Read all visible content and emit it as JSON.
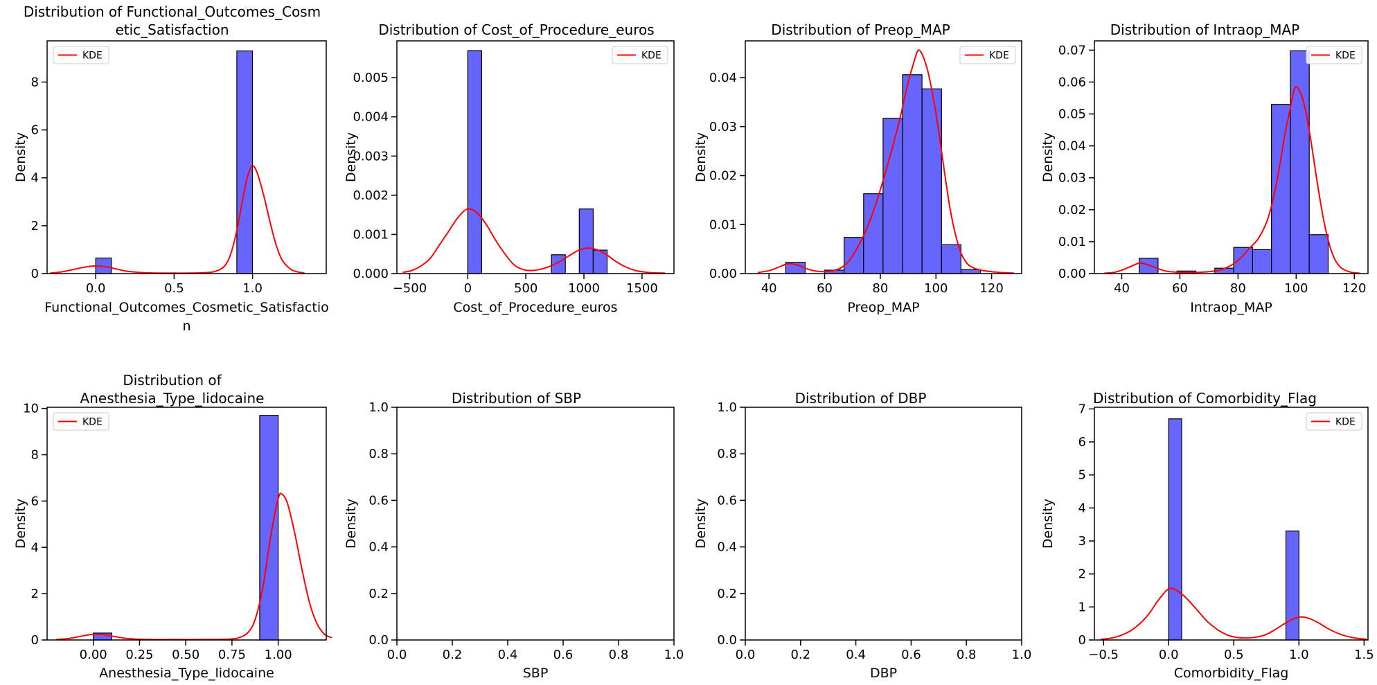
{
  "figure": {
    "background": "#ffffff",
    "bar_fill": "#6666ff",
    "bar_edge": "#000000",
    "kde_color": "#ff0000",
    "axis_color": "#000000",
    "legend_border": "#cccccc"
  },
  "chart_data": [
    {
      "type": "bar",
      "title_lines": [
        "Distribution of Functional_Outcomes_Cosm",
        "etic_Satisfaction"
      ],
      "xlabel_lines": [
        "Functional_Outcomes_Cosmetic_Satisfactio",
        "n"
      ],
      "ylabel": "Density",
      "xlim": [
        -0.31,
        1.47
      ],
      "ylim": [
        0,
        9.72
      ],
      "xticks": {
        "values": [
          0.0,
          0.5,
          1.0
        ],
        "labels": [
          "0.0",
          "0.5",
          "1.0"
        ]
      },
      "yticks": {
        "values": [
          0,
          2,
          4,
          6,
          8
        ],
        "labels": [
          "0",
          "2",
          "4",
          "6",
          "8"
        ]
      },
      "bars": [
        [
          0,
          0.1,
          0.65
        ],
        [
          0.9,
          1.0,
          9.3
        ]
      ],
      "kde": [
        [
          -0.29,
          0.02
        ],
        [
          -0.22,
          0.07
        ],
        [
          -0.15,
          0.16
        ],
        [
          -0.07,
          0.27
        ],
        [
          0,
          0.32
        ],
        [
          0.07,
          0.28
        ],
        [
          0.14,
          0.18
        ],
        [
          0.21,
          0.09
        ],
        [
          0.3,
          0.04
        ],
        [
          0.4,
          0.02
        ],
        [
          0.5,
          0.02
        ],
        [
          0.6,
          0.02
        ],
        [
          0.7,
          0.04
        ],
        [
          0.76,
          0.09
        ],
        [
          0.82,
          0.3
        ],
        [
          0.86,
          0.8
        ],
        [
          0.9,
          1.8
        ],
        [
          0.94,
          3.2
        ],
        [
          0.97,
          4.1
        ],
        [
          1.0,
          4.5
        ],
        [
          1.03,
          4.2
        ],
        [
          1.07,
          3.3
        ],
        [
          1.11,
          2.2
        ],
        [
          1.15,
          1.2
        ],
        [
          1.19,
          0.55
        ],
        [
          1.24,
          0.2
        ],
        [
          1.28,
          0.08
        ],
        [
          1.33,
          0.03
        ]
      ],
      "legend": {
        "show": true,
        "loc": "upper-left",
        "label": "KDE"
      }
    },
    {
      "type": "bar",
      "title_lines": [
        "Distribution of Cost_of_Procedure_euros"
      ],
      "xlabel_lines": [
        "Cost_of_Procedure_euros"
      ],
      "ylabel": "Density",
      "xlim": [
        -610,
        1775
      ],
      "ylim": [
        0,
        0.00594
      ],
      "xticks": {
        "values": [
          -500,
          0,
          500,
          1000,
          1500
        ],
        "labels": [
          "−500",
          "0",
          "500",
          "1000",
          "1500"
        ]
      },
      "yticks": {
        "values": [
          0,
          0.001,
          0.002,
          0.003,
          0.004,
          0.005
        ],
        "labels": [
          "0.000",
          "0.001",
          "0.002",
          "0.003",
          "0.004",
          "0.005"
        ]
      },
      "bars": [
        [
          0,
          120,
          0.00569
        ],
        [
          720,
          840,
          0.00048
        ],
        [
          960,
          1080,
          0.00165
        ],
        [
          1080,
          1200,
          0.0006
        ]
      ],
      "kde": [
        [
          -560,
          3e-05
        ],
        [
          -480,
          8e-05
        ],
        [
          -400,
          0.0002
        ],
        [
          -320,
          0.0004
        ],
        [
          -240,
          0.00075
        ],
        [
          -160,
          0.0011
        ],
        [
          -80,
          0.00145
        ],
        [
          0,
          0.00165
        ],
        [
          80,
          0.00155
        ],
        [
          160,
          0.00125
        ],
        [
          240,
          0.00085
        ],
        [
          320,
          0.0005
        ],
        [
          400,
          0.00022
        ],
        [
          480,
          0.0001
        ],
        [
          560,
          8e-05
        ],
        [
          640,
          0.00012
        ],
        [
          720,
          0.0002
        ],
        [
          800,
          0.00032
        ],
        [
          880,
          0.00047
        ],
        [
          960,
          0.0006
        ],
        [
          1040,
          0.00065
        ],
        [
          1120,
          0.0006
        ],
        [
          1200,
          0.00047
        ],
        [
          1280,
          0.0003
        ],
        [
          1360,
          0.00017
        ],
        [
          1440,
          8e-05
        ],
        [
          1520,
          4e-05
        ],
        [
          1600,
          2e-05
        ],
        [
          1700,
          1e-05
        ]
      ],
      "legend": {
        "show": true,
        "loc": "upper-right",
        "label": "KDE"
      }
    },
    {
      "type": "bar",
      "title_lines": [
        "Distribution of Preop_MAP"
      ],
      "xlabel_lines": [
        "Preop_MAP"
      ],
      "ylabel": "Density",
      "xlim": [
        31.5,
        130.8
      ],
      "ylim": [
        0,
        0.0475
      ],
      "xticks": {
        "values": [
          40,
          60,
          80,
          100,
          120
        ],
        "labels": [
          "40",
          "60",
          "80",
          "100",
          "120"
        ]
      },
      "yticks": {
        "values": [
          0,
          0.01,
          0.02,
          0.03,
          0.04
        ],
        "labels": [
          "0.00",
          "0.01",
          "0.02",
          "0.03",
          "0.04"
        ]
      },
      "bars": [
        [
          46,
          53,
          0.0023
        ],
        [
          60,
          67,
          0.0007
        ],
        [
          67,
          74,
          0.0074
        ],
        [
          74,
          81,
          0.0163
        ],
        [
          81,
          88,
          0.0317
        ],
        [
          88,
          95,
          0.0406
        ],
        [
          95,
          102,
          0.0377
        ],
        [
          102,
          109,
          0.0059
        ],
        [
          109,
          116,
          0.0008
        ]
      ],
      "kde": [
        [
          36,
          0.0002
        ],
        [
          40,
          0.0006
        ],
        [
          43,
          0.0012
        ],
        [
          46,
          0.0019
        ],
        [
          48,
          0.002
        ],
        [
          51,
          0.0016
        ],
        [
          54,
          0.0009
        ],
        [
          57,
          0.0005
        ],
        [
          60,
          0.0004
        ],
        [
          63,
          0.0006
        ],
        [
          66,
          0.0012
        ],
        [
          69,
          0.0028
        ],
        [
          72,
          0.0055
        ],
        [
          75,
          0.009
        ],
        [
          78,
          0.0135
        ],
        [
          81,
          0.019
        ],
        [
          84,
          0.025
        ],
        [
          87,
          0.0315
        ],
        [
          90,
          0.039
        ],
        [
          92,
          0.043
        ],
        [
          93.5,
          0.0455
        ],
        [
          95,
          0.0448
        ],
        [
          97,
          0.0415
        ],
        [
          99,
          0.036
        ],
        [
          101,
          0.029
        ],
        [
          103,
          0.021
        ],
        [
          105,
          0.0135
        ],
        [
          107,
          0.008
        ],
        [
          109,
          0.0042
        ],
        [
          111,
          0.0022
        ],
        [
          113,
          0.0013
        ],
        [
          116,
          0.0007
        ],
        [
          120,
          0.0004
        ],
        [
          124,
          0.0002
        ],
        [
          128,
          0.0001
        ]
      ],
      "legend": {
        "show": true,
        "loc": "upper-right",
        "label": "KDE"
      }
    },
    {
      "type": "bar",
      "title_lines": [
        "Distribution of Intraop_MAP"
      ],
      "xlabel_lines": [
        "Intraop_MAP"
      ],
      "ylabel": "Density",
      "xlim": [
        30.6,
        124.7
      ],
      "ylim": [
        0,
        0.0729
      ],
      "xticks": {
        "values": [
          40,
          60,
          80,
          100,
          120
        ],
        "labels": [
          "40",
          "60",
          "80",
          "100",
          "120"
        ]
      },
      "yticks": {
        "values": [
          0,
          0.01,
          0.02,
          0.03,
          0.04,
          0.05,
          0.06,
          0.07
        ],
        "labels": [
          "0.00",
          "0.01",
          "0.02",
          "0.03",
          "0.04",
          "0.05",
          "0.06",
          "0.07"
        ]
      },
      "bars": [
        [
          46,
          52.5,
          0.0048
        ],
        [
          59,
          65.5,
          0.0008
        ],
        [
          72,
          78.5,
          0.0017
        ],
        [
          78.5,
          85,
          0.0082
        ],
        [
          85,
          91.5,
          0.0075
        ],
        [
          91.5,
          98,
          0.053
        ],
        [
          98,
          104.5,
          0.0698
        ],
        [
          104.5,
          111,
          0.0122
        ]
      ],
      "kde": [
        [
          34,
          0.0001
        ],
        [
          38,
          0.0005
        ],
        [
          42,
          0.0018
        ],
        [
          45,
          0.003
        ],
        [
          46.5,
          0.0033
        ],
        [
          49,
          0.0028
        ],
        [
          52,
          0.0017
        ],
        [
          55,
          0.0008
        ],
        [
          58,
          0.0005
        ],
        [
          62,
          0.0004
        ],
        [
          66,
          0.0004
        ],
        [
          70,
          0.0006
        ],
        [
          74,
          0.0012
        ],
        [
          78,
          0.0028
        ],
        [
          81,
          0.005
        ],
        [
          84,
          0.008
        ],
        [
          87,
          0.011
        ],
        [
          90,
          0.0165
        ],
        [
          92,
          0.023
        ],
        [
          94,
          0.032
        ],
        [
          96,
          0.043
        ],
        [
          98,
          0.052
        ],
        [
          99.5,
          0.058
        ],
        [
          101,
          0.0575
        ],
        [
          103,
          0.052
        ],
        [
          105,
          0.042
        ],
        [
          107,
          0.03
        ],
        [
          109,
          0.019
        ],
        [
          111,
          0.0105
        ],
        [
          113,
          0.005
        ],
        [
          115,
          0.0022
        ],
        [
          117,
          0.001
        ],
        [
          119,
          0.0004
        ],
        [
          122,
          0.0001
        ]
      ],
      "legend": {
        "show": true,
        "loc": "upper-right",
        "label": "KDE"
      }
    },
    {
      "type": "bar",
      "title_lines": [
        "Distribution of",
        "Anesthesia_Type_lidocaine"
      ],
      "xlabel_lines": [
        "Anesthesia_Type_lidocaine"
      ],
      "ylabel": "Density",
      "xlim": [
        -0.25,
        1.26
      ],
      "ylim": [
        0,
        10.05
      ],
      "xticks": {
        "values": [
          0.0,
          0.25,
          0.5,
          0.75,
          1.0
        ],
        "labels": [
          "0.00",
          "0.25",
          "0.50",
          "0.75",
          "1.00"
        ]
      },
      "yticks": {
        "values": [
          0,
          2,
          4,
          6,
          8,
          10
        ],
        "labels": [
          "0",
          "2",
          "4",
          "6",
          "8",
          "10"
        ]
      },
      "bars": [
        [
          0,
          0.1,
          0.3
        ],
        [
          0.9,
          1.0,
          9.7
        ]
      ],
      "kde": [
        [
          -0.2,
          0.02
        ],
        [
          -0.13,
          0.07
        ],
        [
          -0.06,
          0.17
        ],
        [
          0,
          0.25
        ],
        [
          0.06,
          0.22
        ],
        [
          0.13,
          0.13
        ],
        [
          0.2,
          0.05
        ],
        [
          0.3,
          0.02
        ],
        [
          0.45,
          0.02
        ],
        [
          0.6,
          0.02
        ],
        [
          0.7,
          0.03
        ],
        [
          0.78,
          0.08
        ],
        [
          0.84,
          0.35
        ],
        [
          0.88,
          1.0
        ],
        [
          0.92,
          2.4
        ],
        [
          0.96,
          4.5
        ],
        [
          1.0,
          6.1
        ],
        [
          1.02,
          6.3
        ],
        [
          1.05,
          5.9
        ],
        [
          1.09,
          4.6
        ],
        [
          1.13,
          3.0
        ],
        [
          1.17,
          1.6
        ],
        [
          1.21,
          0.7
        ],
        [
          1.25,
          0.25
        ],
        [
          1.29,
          0.1
        ]
      ],
      "legend": {
        "show": true,
        "loc": "upper-left",
        "label": "KDE"
      }
    },
    {
      "type": "bar",
      "title_lines": [
        "Distribution of SBP"
      ],
      "xlabel_lines": [
        "SBP"
      ],
      "ylabel": "Density",
      "xlim": [
        0,
        1
      ],
      "ylim": [
        0,
        1
      ],
      "xticks": {
        "values": [
          0.0,
          0.2,
          0.4,
          0.6,
          0.8,
          1.0
        ],
        "labels": [
          "0.0",
          "0.2",
          "0.4",
          "0.6",
          "0.8",
          "1.0"
        ]
      },
      "yticks": {
        "values": [
          0.0,
          0.2,
          0.4,
          0.6,
          0.8,
          1.0
        ],
        "labels": [
          "0.0",
          "0.2",
          "0.4",
          "0.6",
          "0.8",
          "1.0"
        ]
      },
      "bars": [],
      "kde": [],
      "legend": {
        "show": false,
        "loc": "upper-right",
        "label": "KDE"
      }
    },
    {
      "type": "bar",
      "title_lines": [
        "Distribution of DBP"
      ],
      "xlabel_lines": [
        "DBP"
      ],
      "ylabel": "Density",
      "xlim": [
        0,
        1
      ],
      "ylim": [
        0,
        1
      ],
      "xticks": {
        "values": [
          0.0,
          0.2,
          0.4,
          0.6,
          0.8,
          1.0
        ],
        "labels": [
          "0.0",
          "0.2",
          "0.4",
          "0.6",
          "0.8",
          "1.0"
        ]
      },
      "yticks": {
        "values": [
          0.0,
          0.2,
          0.4,
          0.6,
          0.8,
          1.0
        ],
        "labels": [
          "0.0",
          "0.2",
          "0.4",
          "0.6",
          "0.8",
          "1.0"
        ]
      },
      "bars": [],
      "kde": [],
      "legend": {
        "show": false,
        "loc": "upper-right",
        "label": "KDE"
      }
    },
    {
      "type": "bar",
      "title_lines": [
        "Distribution of Comorbidity_Flag"
      ],
      "xlabel_lines": [
        "Comorbidity_Flag"
      ],
      "ylabel": "Density",
      "xlim": [
        -0.57,
        1.53
      ],
      "ylim": [
        0,
        7.05
      ],
      "xticks": {
        "values": [
          -0.5,
          0.0,
          0.5,
          1.0,
          1.5
        ],
        "labels": [
          "−0.5",
          "0.0",
          "0.5",
          "1.0",
          "1.5"
        ]
      },
      "yticks": {
        "values": [
          0,
          1,
          2,
          3,
          4,
          5,
          6,
          7
        ],
        "labels": [
          "0",
          "1",
          "2",
          "3",
          "4",
          "5",
          "6",
          "7"
        ]
      },
      "bars": [
        [
          0,
          0.1,
          6.7
        ],
        [
          0.9,
          1.0,
          3.3
        ]
      ],
      "kde": [
        [
          -0.52,
          0.02
        ],
        [
          -0.45,
          0.05
        ],
        [
          -0.38,
          0.12
        ],
        [
          -0.3,
          0.26
        ],
        [
          -0.22,
          0.5
        ],
        [
          -0.15,
          0.8
        ],
        [
          -0.08,
          1.2
        ],
        [
          0,
          1.55
        ],
        [
          0.07,
          1.48
        ],
        [
          0.14,
          1.25
        ],
        [
          0.22,
          0.9
        ],
        [
          0.3,
          0.55
        ],
        [
          0.38,
          0.3
        ],
        [
          0.45,
          0.15
        ],
        [
          0.52,
          0.08
        ],
        [
          0.6,
          0.06
        ],
        [
          0.68,
          0.09
        ],
        [
          0.75,
          0.17
        ],
        [
          0.82,
          0.32
        ],
        [
          0.9,
          0.52
        ],
        [
          0.97,
          0.66
        ],
        [
          1.02,
          0.7
        ],
        [
          1.08,
          0.65
        ],
        [
          1.15,
          0.52
        ],
        [
          1.22,
          0.35
        ],
        [
          1.3,
          0.2
        ],
        [
          1.38,
          0.1
        ],
        [
          1.45,
          0.05
        ],
        [
          1.52,
          0.02
        ]
      ],
      "legend": {
        "show": true,
        "loc": "upper-right",
        "label": "KDE"
      }
    }
  ]
}
